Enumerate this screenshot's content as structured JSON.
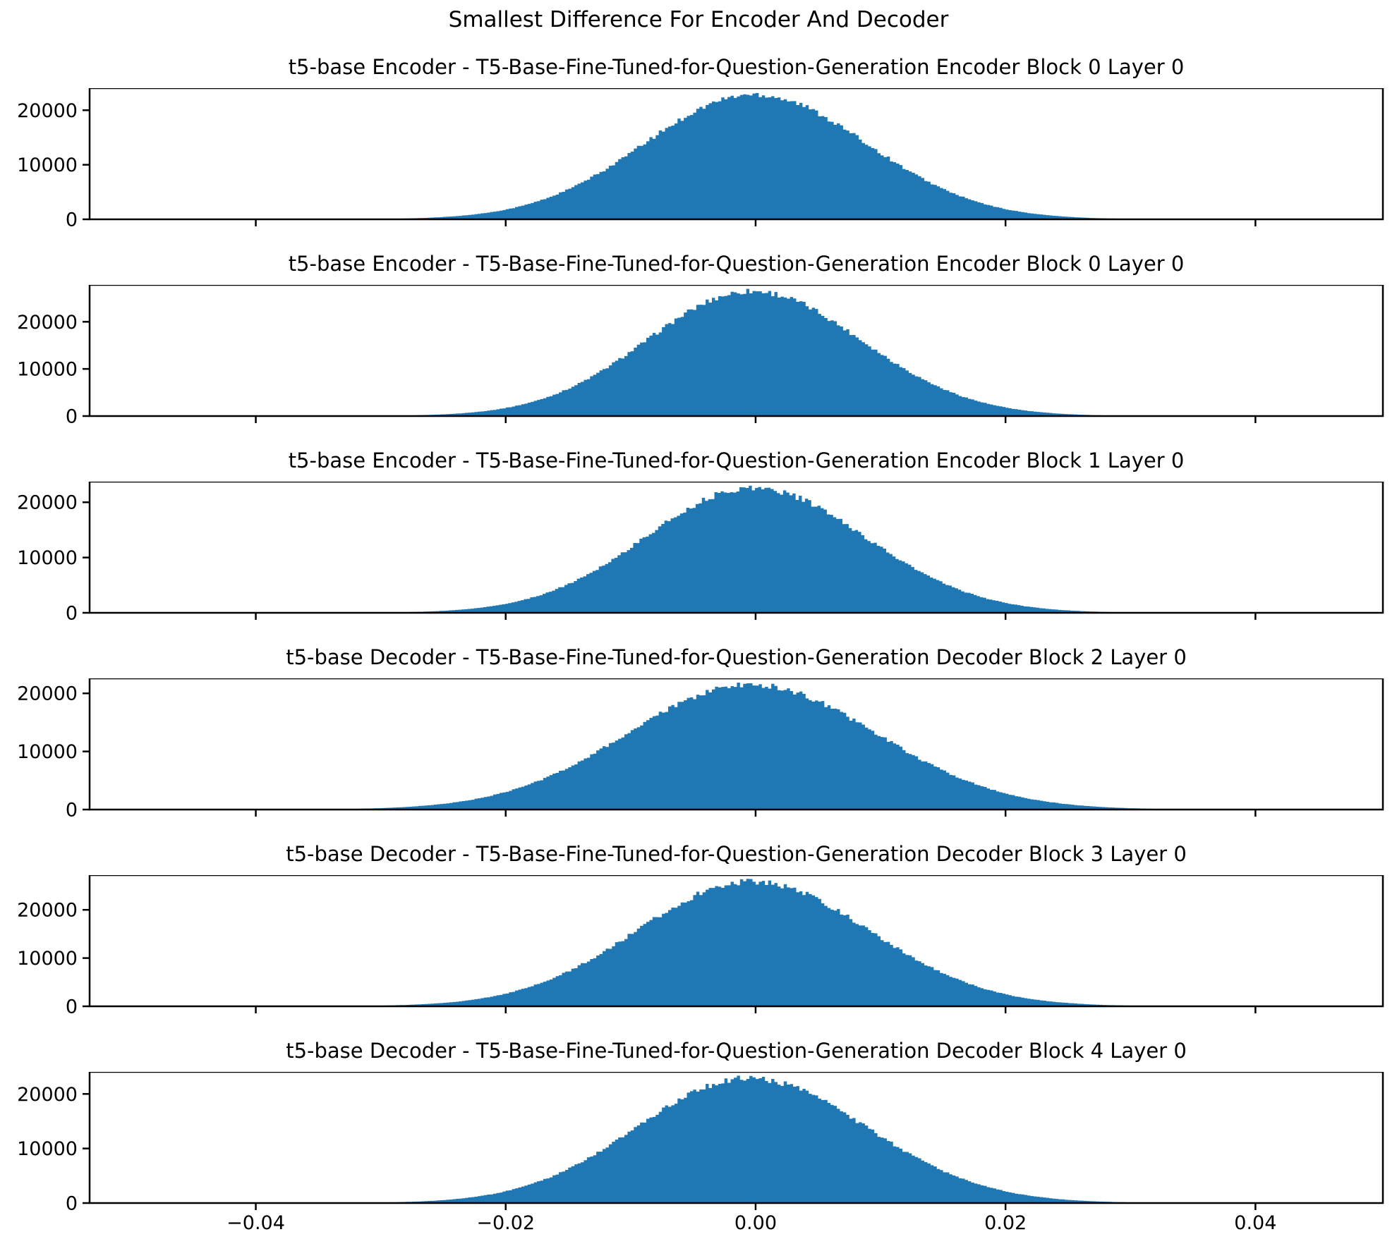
{
  "chart_data": {
    "type": "histogram",
    "suptitle": "Smallest Difference For Encoder And Decoder",
    "grid": false,
    "legend": "none",
    "bar_color": "#1f77b4",
    "axis_color": "#000000",
    "xlim": [
      -0.0533,
      0.0502
    ],
    "x_ticks": [
      -0.04,
      -0.02,
      0.0,
      0.02,
      0.04
    ],
    "x_tick_labels": [
      "−0.04",
      "−0.02",
      "0.00",
      "0.02",
      "0.04"
    ],
    "y_ticks": [
      0,
      10000,
      20000
    ],
    "y_tick_labels": [
      "0",
      "10000",
      "20000"
    ],
    "bin_width": 0.00025,
    "histograms": [
      {
        "title": "t5-base Encoder - T5-Base-Fine-Tuned-for-Question-Generation Encoder Block 0 Layer 0",
        "peak_count": 22900,
        "center": -0.0001,
        "std": 0.0089,
        "skew": 0.01,
        "data_min": -0.0295,
        "data_max": 0.0293,
        "ylim_max": 24045
      },
      {
        "title": "t5-base Encoder - T5-Base-Fine-Tuned-for-Question-Generation Encoder Block 0 Layer 0",
        "peak_count": 26500,
        "center": -0.0003,
        "std": 0.0086,
        "skew": 0.02,
        "data_min": -0.029,
        "data_max": 0.0292,
        "ylim_max": 27825
      },
      {
        "title": "t5-base Encoder - T5-Base-Fine-Tuned-for-Question-Generation Encoder Block 1 Layer 0",
        "peak_count": 22600,
        "center": -0.0002,
        "std": 0.0088,
        "skew": 0.02,
        "data_min": -0.0293,
        "data_max": 0.0295,
        "ylim_max": 23730
      },
      {
        "title": "t5-base Decoder - T5-Base-Fine-Tuned-for-Question-Generation Decoder Block 2 Layer 0",
        "peak_count": 21500,
        "center": -0.0004,
        "std": 0.01,
        "skew": 0.01,
        "data_min": -0.032,
        "data_max": 0.0318,
        "ylim_max": 22575
      },
      {
        "title": "t5-base Decoder - T5-Base-Fine-Tuned-for-Question-Generation Decoder Block 3 Layer 0",
        "peak_count": 25900,
        "center": -0.0003,
        "std": 0.0093,
        "skew": 0.01,
        "data_min": -0.03,
        "data_max": 0.0302,
        "ylim_max": 27195
      },
      {
        "title": "t5-base Decoder - T5-Base-Fine-Tuned-for-Question-Generation Decoder Block 4 Layer 0",
        "peak_count": 22900,
        "center": -0.0006,
        "std": 0.0092,
        "skew": 0.03,
        "data_min": -0.03,
        "data_max": 0.0298,
        "ylim_max": 24045
      }
    ]
  }
}
